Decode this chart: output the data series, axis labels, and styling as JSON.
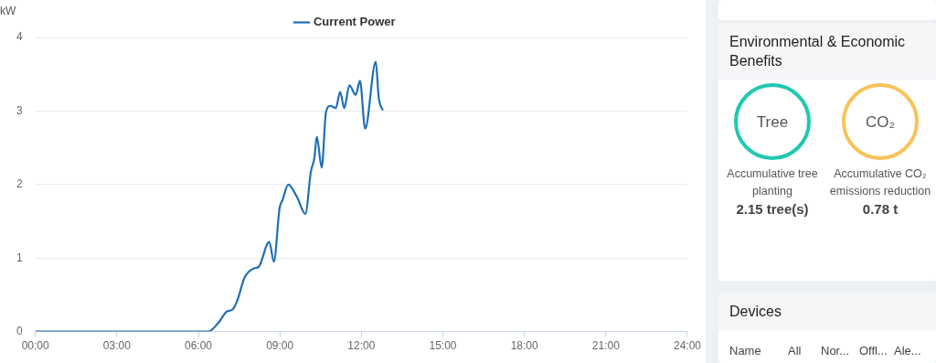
{
  "chart_data": [
    {
      "type": "line",
      "ylabel": "kW",
      "legend": "top",
      "xlim": [
        0,
        24
      ],
      "xticks": [
        {
          "value": 0,
          "label": "00:00"
        },
        {
          "value": 3,
          "label": "03:00"
        },
        {
          "value": 6,
          "label": "06:00"
        },
        {
          "value": 9,
          "label": "09:00"
        },
        {
          "value": 12,
          "label": "12:00"
        },
        {
          "value": 15,
          "label": "15:00"
        },
        {
          "value": 18,
          "label": "18:00"
        },
        {
          "value": 21,
          "label": "21:00"
        },
        {
          "value": 24,
          "label": "24:00"
        }
      ],
      "ylim": [
        0,
        4
      ],
      "yticks": [
        0,
        1,
        2,
        3,
        4
      ],
      "grid": "y",
      "marker": "none",
      "series": [
        {
          "name": "Current Power",
          "color": "#1f6fb5",
          "x": [
            0,
            3,
            6,
            6.36,
            6.76,
            7.04,
            7.26,
            7.43,
            7.71,
            8.05,
            8.22,
            8.61,
            8.78,
            8.99,
            9.1,
            9.31,
            9.63,
            9.94,
            10.14,
            10.27,
            10.36,
            10.54,
            10.7,
            10.87,
            11.06,
            11.22,
            11.37,
            11.56,
            11.79,
            11.95,
            12.14,
            12.53,
            12.64,
            12.79
          ],
          "values": [
            0,
            0,
            0,
            0,
            0.13,
            0.27,
            0.3,
            0.42,
            0.74,
            0.86,
            0.88,
            1.22,
            0.95,
            1.68,
            1.79,
            2.0,
            1.83,
            1.6,
            2.17,
            2.36,
            2.65,
            2.23,
            2.99,
            3.07,
            3.04,
            3.26,
            3.04,
            3.35,
            3.22,
            3.41,
            2.76,
            3.67,
            3.18,
            3.01
          ]
        }
      ]
    },
    {
      "type": "other",
      "title": "Environmental & Economic Benefits",
      "annotations": [
        "Tree",
        "CO₂",
        "Accumulative tree planting",
        "2.15 tree(s)",
        "Accumulative CO₂ emissions reduction",
        "0.78 t",
        "Devices",
        "Name",
        "All",
        "Nor...",
        "Offl...",
        "Ale..."
      ]
    }
  ]
}
